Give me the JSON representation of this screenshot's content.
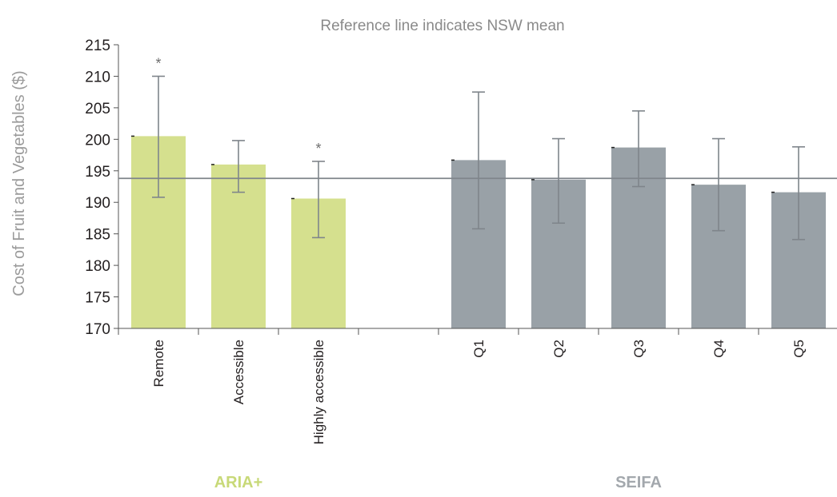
{
  "chart_data": {
    "type": "bar",
    "title": "Reference line indicates NSW mean",
    "ylabel": "Cost of Fruit and Vegetables ($)",
    "xlabel": "",
    "ylim": [
      170,
      215
    ],
    "yticks": [
      170,
      175,
      180,
      185,
      190,
      195,
      200,
      205,
      210,
      215
    ],
    "ytick_labels": [
      "170",
      "175",
      "180",
      "185",
      "190",
      "195",
      "200",
      "205",
      "210",
      "215"
    ],
    "categories": [
      "Remote",
      "Accessible",
      "Highly accessible",
      "",
      "Q1",
      "Q2",
      "Q3",
      "Q4",
      "Q5"
    ],
    "groups": [
      {
        "name": "ARIA+",
        "color": "#d5e08e",
        "label_color": "#c8d978"
      },
      {
        "name": "SEIFA",
        "color": "#99a1a7",
        "label_color": "#a3a8ad"
      }
    ],
    "bars": [
      {
        "category": "Remote",
        "group": "ARIA+",
        "value": 200.5,
        "err_low": 190.8,
        "err_high": 210.0,
        "annotation": "*"
      },
      {
        "category": "Accessible",
        "group": "ARIA+",
        "value": 196.0,
        "err_low": 191.6,
        "err_high": 199.8,
        "annotation": ""
      },
      {
        "category": "Highly accessible",
        "group": "ARIA+",
        "value": 190.6,
        "err_low": 184.4,
        "err_high": 196.5,
        "annotation": "*"
      },
      {
        "category": "Q1",
        "group": "SEIFA",
        "value": 196.7,
        "err_low": 185.8,
        "err_high": 207.5,
        "annotation": ""
      },
      {
        "category": "Q2",
        "group": "SEIFA",
        "value": 193.6,
        "err_low": 186.7,
        "err_high": 200.1,
        "annotation": ""
      },
      {
        "category": "Q3",
        "group": "SEIFA",
        "value": 198.7,
        "err_low": 192.5,
        "err_high": 204.5,
        "annotation": ""
      },
      {
        "category": "Q4",
        "group": "SEIFA",
        "value": 192.8,
        "err_low": 185.5,
        "err_high": 200.1,
        "annotation": ""
      },
      {
        "category": "Q5",
        "group": "SEIFA",
        "value": 191.6,
        "err_low": 184.1,
        "err_high": 198.8,
        "annotation": ""
      }
    ],
    "reference_line": {
      "value": 193.8
    },
    "grid": false,
    "legend": "none"
  }
}
